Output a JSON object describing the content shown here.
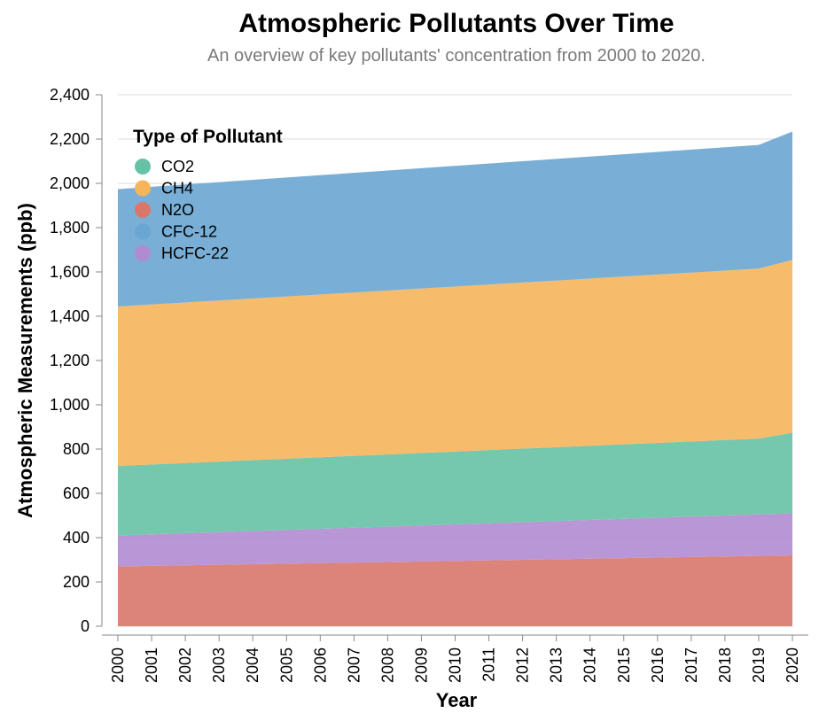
{
  "chart_data": {
    "type": "area",
    "stacked": true,
    "title": "Atmospheric Pollutants Over Time",
    "subtitle": "An overview of key pollutants' concentration from 2000 to 2020.",
    "xlabel": "Year",
    "ylabel": "Atmospheric Measurements (ppb)",
    "x": [
      2000,
      2001,
      2002,
      2003,
      2004,
      2005,
      2006,
      2007,
      2008,
      2009,
      2010,
      2011,
      2012,
      2013,
      2014,
      2015,
      2016,
      2017,
      2018,
      2019,
      2020
    ],
    "x_tick_labels": [
      "2000",
      "2001",
      "2002",
      "2003",
      "2004",
      "2005",
      "2006",
      "2007",
      "2008",
      "2009",
      "2010",
      "2011",
      "2012",
      "2013",
      "2014",
      "2015",
      "2016",
      "2017",
      "2018",
      "2019",
      "2020"
    ],
    "ylim": [
      0,
      2400
    ],
    "y_ticks": [
      0,
      200,
      400,
      600,
      800,
      1000,
      1200,
      1400,
      1600,
      1800,
      2000,
      2200,
      2400
    ],
    "y_tick_labels": [
      "0",
      "200",
      "400",
      "600",
      "800",
      "1,000",
      "1,200",
      "1,400",
      "1,600",
      "1,800",
      "2,000",
      "2,200",
      "2,400"
    ],
    "grid": true,
    "legend": {
      "title": "Type of Pollutant",
      "position": "top-left"
    },
    "stack_order": [
      "N2O",
      "HCFC-22",
      "CO2",
      "CH4",
      "CFC-12"
    ],
    "series": [
      {
        "name": "CO2",
        "color": "#66c2a5",
        "values": [
          314,
          315.5,
          317,
          318.5,
          320,
          321.5,
          323,
          324.5,
          326,
          327.5,
          329,
          330.5,
          332,
          333.5,
          335,
          336.5,
          338,
          339.5,
          341,
          342.5,
          364
        ]
      },
      {
        "name": "CH4",
        "color": "#f6b55b",
        "values": [
          720,
          722.5,
          725,
          727.5,
          730,
          732.5,
          735,
          737.5,
          740,
          742.5,
          745,
          747.5,
          750,
          752.5,
          755,
          757.5,
          760,
          762.5,
          765,
          767.5,
          780
        ]
      },
      {
        "name": "N2O",
        "color": "#d9776b",
        "values": [
          270,
          272.5,
          275,
          277.5,
          280,
          282.5,
          285,
          287.5,
          290,
          292.5,
          295,
          297.5,
          300,
          302.5,
          305,
          307.5,
          310,
          312.5,
          315,
          317.5,
          320
        ]
      },
      {
        "name": "CFC-12",
        "color": "#6aa6d1",
        "values": [
          530,
          531.5,
          533,
          534.5,
          536,
          537.5,
          539,
          540.5,
          542,
          543.5,
          545,
          546.5,
          548,
          549.5,
          551,
          552.5,
          554,
          555.5,
          557,
          558.5,
          580
        ]
      },
      {
        "name": "HCFC-22",
        "color": "#b18bd0",
        "values": [
          140,
          142.5,
          145,
          147.5,
          150,
          152.5,
          155,
          157.5,
          160,
          162.5,
          165,
          167.5,
          170,
          172.5,
          175,
          177.5,
          180,
          182.5,
          185,
          187.5,
          190
        ]
      }
    ]
  }
}
